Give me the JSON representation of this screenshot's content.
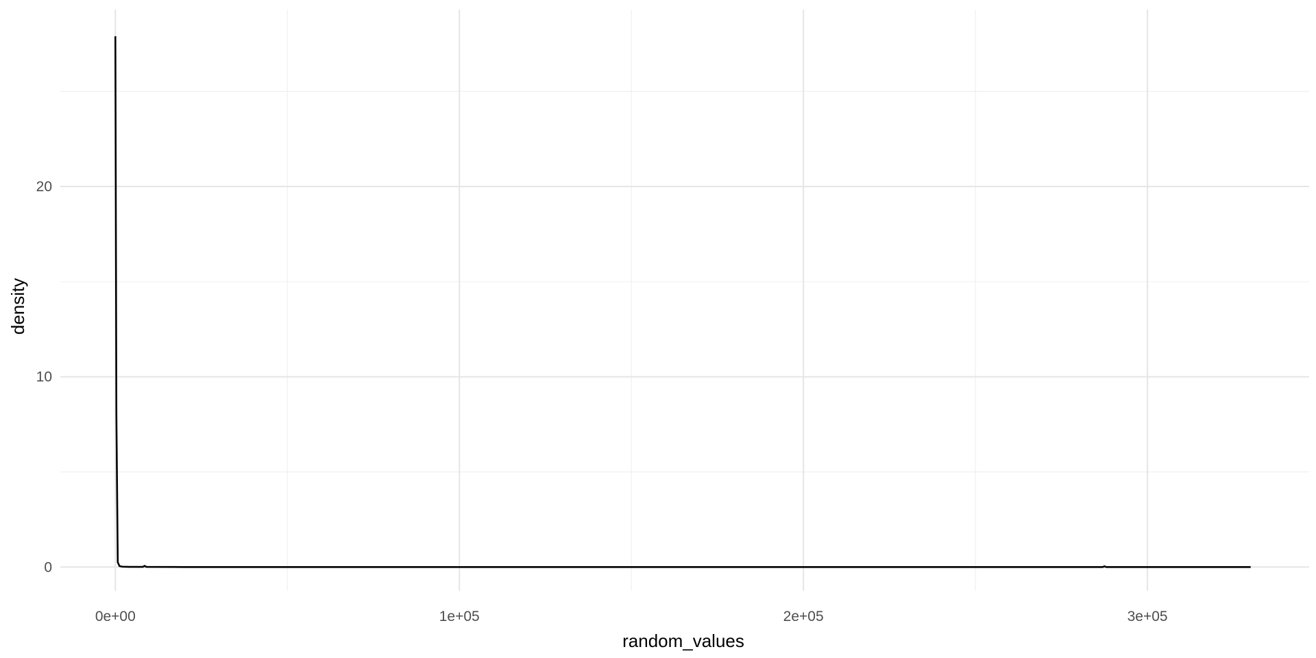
{
  "chart_data": {
    "type": "line",
    "title": "",
    "xlabel": "random_values",
    "ylabel": "density",
    "xlim": [
      -16000,
      347000
    ],
    "ylim": [
      -1.25,
      29.3
    ],
    "x_ticks": [
      {
        "value": 0,
        "label": "0e+00"
      },
      {
        "value": 100000,
        "label": "1e+05"
      },
      {
        "value": 200000,
        "label": "2e+05"
      },
      {
        "value": 300000,
        "label": "3e+05"
      }
    ],
    "x_minor_ticks": [
      50000,
      150000,
      250000
    ],
    "y_ticks": [
      {
        "value": 0,
        "label": "0"
      },
      {
        "value": 10,
        "label": "10"
      },
      {
        "value": 20,
        "label": "20"
      }
    ],
    "y_minor_ticks": [
      5,
      15,
      25
    ],
    "grid": true,
    "legend": "none",
    "line_color": "#000000",
    "series": [
      {
        "x": [
          0,
          300,
          700,
          1200,
          2000,
          4000,
          8000,
          8500,
          9000,
          20000,
          50000,
          100000,
          150000,
          200000,
          250000,
          287000,
          287500,
          288000,
          300000,
          330000
        ],
        "y": [
          27.9,
          8.0,
          0.25,
          0.05,
          0.02,
          0.01,
          0.01,
          0.06,
          0.01,
          0.0,
          0.0,
          0.0,
          0.0,
          0.0,
          0.0,
          0.0,
          0.04,
          0.0,
          0.0,
          0.0
        ]
      }
    ]
  }
}
